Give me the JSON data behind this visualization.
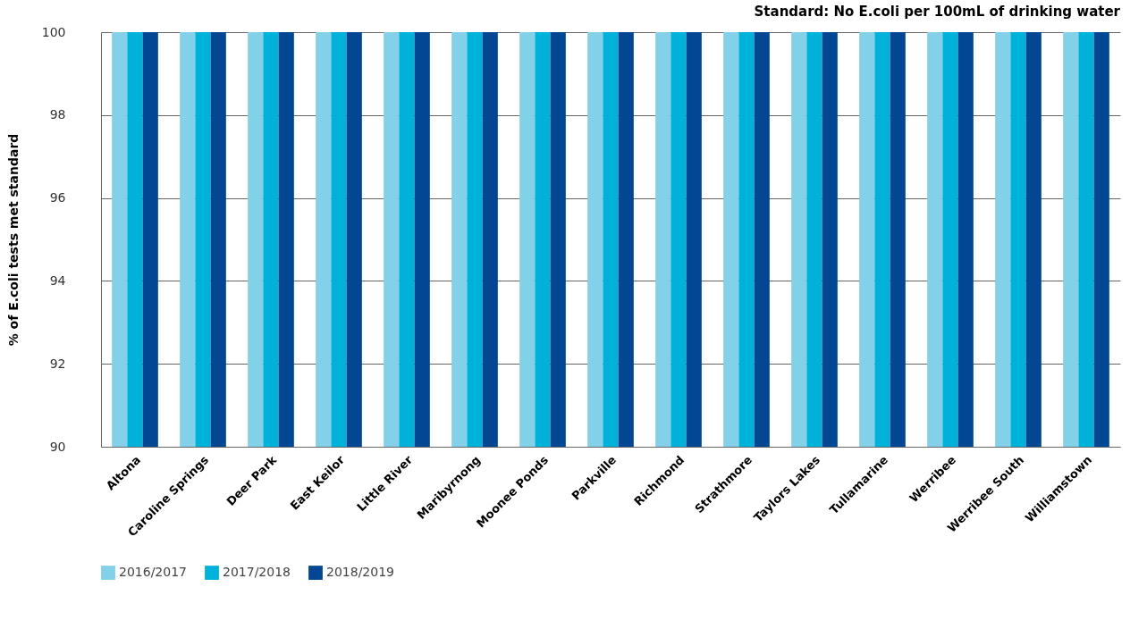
{
  "chart_data": {
    "type": "bar",
    "title": "Standard: No E.coli per 100mL of drinking water",
    "ylabel": "% of E.coli tests met standard",
    "categories": [
      "Altona",
      "Caroline Springs",
      "Deer Park",
      "East Keilor",
      "Little River",
      "Maribyrnong",
      "Moonee Ponds",
      "Parkville",
      "Richmond",
      "Strathmore",
      "Taylors Lakes",
      "Tullamarine",
      "Werribee",
      "Werribee South",
      "Williamstown"
    ],
    "series": [
      {
        "name": "2016/2017",
        "color": "#82d1e8",
        "values": [
          100,
          100,
          100,
          100,
          100,
          100,
          100,
          100,
          100,
          100,
          100,
          100,
          100,
          100,
          100
        ]
      },
      {
        "name": "2017/2018",
        "color": "#00b1da",
        "values": [
          100,
          100,
          100,
          100,
          100,
          100,
          100,
          100,
          100,
          100,
          100,
          100,
          100,
          100,
          100
        ]
      },
      {
        "name": "2018/2019",
        "color": "#034692",
        "values": [
          100,
          100,
          100,
          100,
          100,
          100,
          100,
          100,
          100,
          100,
          100,
          100,
          100,
          100,
          100
        ]
      }
    ],
    "ylim": [
      90,
      100
    ],
    "yticks": [
      90,
      92,
      94,
      96,
      98,
      100
    ],
    "grid": "y",
    "legend": "bottom"
  }
}
